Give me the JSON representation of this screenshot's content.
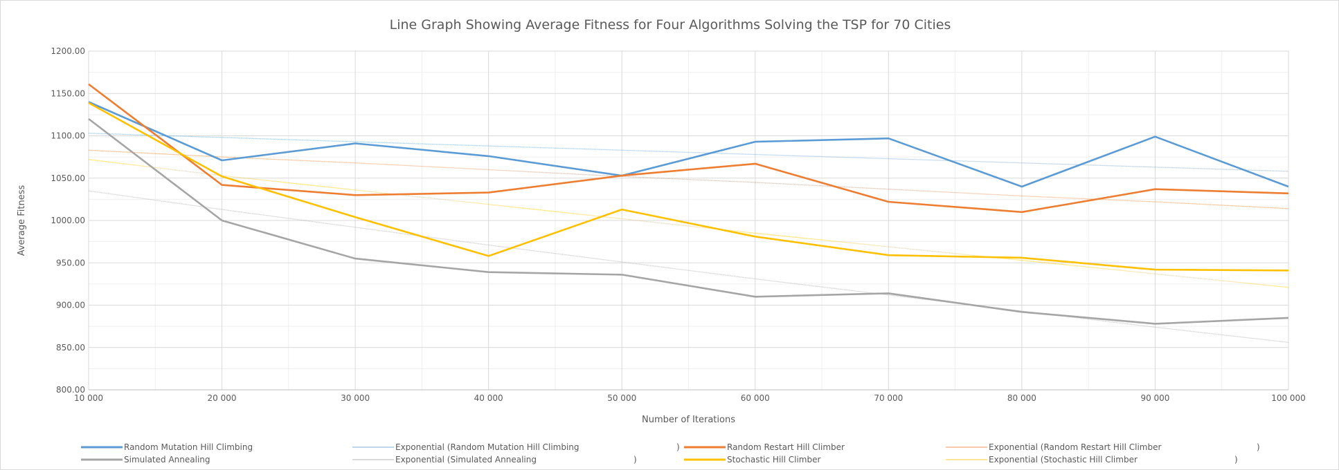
{
  "chart_data": {
    "type": "line",
    "title": "Line Graph Showing Average Fitness for Four Algorithms Solving the TSP for 70 Cities",
    "xlabel": "Number of Iterations",
    "ylabel": "Average Fitness",
    "x": [
      10000,
      20000,
      30000,
      40000,
      50000,
      60000,
      70000,
      80000,
      90000,
      100000
    ],
    "x_tick_labels": [
      "10 000",
      "20 000",
      "30 000",
      "40 000",
      "50 000",
      "60 000",
      "70 000",
      "80 000",
      "90 000",
      "100 000"
    ],
    "xlim": [
      10000,
      100000
    ],
    "ylim": [
      800,
      1200
    ],
    "y_ticks": [
      800,
      850,
      900,
      950,
      1000,
      1050,
      1100,
      1150,
      1200
    ],
    "y_tick_labels": [
      "800.00",
      "850.00",
      "900.00",
      "950.00",
      "1000.00",
      "1050.00",
      "1100.00",
      "1150.00",
      "1200.00"
    ],
    "grid": true,
    "minor_grid": true,
    "legend_position": "bottom",
    "series": [
      {
        "name": "Random Mutation Hill Climbing",
        "kind": "data",
        "color": "#5b9bd5",
        "values": [
          1140,
          1071,
          1091,
          1076,
          1053,
          1093,
          1097,
          1040,
          1099,
          1040
        ]
      },
      {
        "name": "Random Restart Hill Climber",
        "kind": "data",
        "color": "#ed7d31",
        "values": [
          1161,
          1042,
          1030,
          1033,
          1053,
          1067,
          1022,
          1010,
          1037,
          1032
        ]
      },
      {
        "name": "Simulated Annealing",
        "kind": "data",
        "color": "#a5a5a5",
        "values": [
          1120,
          1000,
          955,
          939,
          936,
          910,
          914,
          892,
          878,
          885
        ]
      },
      {
        "name": "Stochastic Hill Climber",
        "kind": "data",
        "color": "#ffc000",
        "values": [
          1139,
          1052,
          1004,
          958,
          1013,
          981,
          959,
          956,
          942,
          941
        ]
      },
      {
        "name": "Exponential (Random Mutation Hill Climbing",
        "name_suffix": ")",
        "kind": "trend",
        "color": "#5b9bd5",
        "values": [
          1103,
          1098,
          1093,
          1088,
          1083,
          1078,
          1073,
          1068,
          1063,
          1058
        ]
      },
      {
        "name": "Exponential (Random Restart Hill Climber",
        "name_suffix": ")",
        "kind": "trend",
        "color": "#ed7d31",
        "values": [
          1083,
          1075,
          1068,
          1060,
          1052,
          1045,
          1037,
          1029,
          1022,
          1014
        ]
      },
      {
        "name": "Exponential (Simulated Annealing",
        "name_suffix": ")",
        "kind": "trend",
        "color": "#a5a5a5",
        "values": [
          1035,
          1013,
          992,
          971,
          951,
          931,
          912,
          893,
          874,
          856
        ]
      },
      {
        "name": "Exponential (Stochastic Hill Climber",
        "name_suffix": ")",
        "kind": "trend",
        "color": "#ffc000",
        "values": [
          1072,
          1053,
          1036,
          1019,
          1002,
          985,
          969,
          953,
          937,
          921
        ]
      }
    ],
    "legend_order": [
      0,
      4,
      1,
      5,
      2,
      6,
      3,
      7
    ]
  }
}
